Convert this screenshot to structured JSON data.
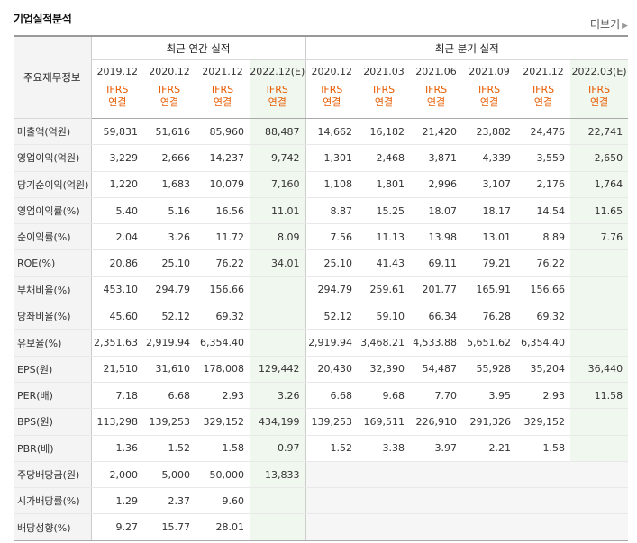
{
  "section": {
    "title": "기업실적분석",
    "more_label": "더보기"
  },
  "header": {
    "corner_label": "주요재무정보",
    "annual_label": "최근 연간 실적",
    "quarter_label": "최근 분기 실적",
    "annual_periods": [
      "2019.12",
      "2020.12",
      "2021.12",
      "2022.12(E)"
    ],
    "quarter_periods": [
      "2020.12",
      "2021.03",
      "2021.06",
      "2021.09",
      "2021.12",
      "2022.03(E)"
    ],
    "ifrs_label": "IFRS",
    "basis_label": "연결"
  },
  "rows": [
    {
      "label": "매출액(억원)",
      "values": [
        "59,831",
        "51,616",
        "85,960",
        "88,487",
        "14,662",
        "16,182",
        "21,420",
        "23,882",
        "24,476",
        "22,741"
      ]
    },
    {
      "label": "영업이익(억원)",
      "values": [
        "3,229",
        "2,666",
        "14,237",
        "9,742",
        "1,301",
        "2,468",
        "3,871",
        "4,339",
        "3,559",
        "2,650"
      ]
    },
    {
      "label": "당기순이익(억원)",
      "values": [
        "1,220",
        "1,683",
        "10,079",
        "7,160",
        "1,108",
        "1,801",
        "2,996",
        "3,107",
        "2,176",
        "1,764"
      ]
    },
    {
      "label": "영업이익률(%)",
      "values": [
        "5.40",
        "5.16",
        "16.56",
        "11.01",
        "8.87",
        "15.25",
        "18.07",
        "18.17",
        "14.54",
        "11.65"
      ]
    },
    {
      "label": "순이익률(%)",
      "values": [
        "2.04",
        "3.26",
        "11.72",
        "8.09",
        "7.56",
        "11.13",
        "13.98",
        "13.01",
        "8.89",
        "7.76"
      ]
    },
    {
      "label": "ROE(%)",
      "values": [
        "20.86",
        "25.10",
        "76.22",
        "34.01",
        "25.10",
        "41.43",
        "69.11",
        "79.21",
        "76.22",
        ""
      ]
    },
    {
      "label": "부채비율(%)",
      "values": [
        "453.10",
        "294.79",
        "156.66",
        "",
        "294.79",
        "259.61",
        "201.77",
        "165.91",
        "156.66",
        ""
      ]
    },
    {
      "label": "당좌비율(%)",
      "values": [
        "45.60",
        "52.12",
        "69.32",
        "",
        "52.12",
        "59.10",
        "66.34",
        "76.28",
        "69.32",
        ""
      ]
    },
    {
      "label": "유보율(%)",
      "values": [
        "2,351.63",
        "2,919.94",
        "6,354.40",
        "",
        "2,919.94",
        "3,468.21",
        "4,533.88",
        "5,651.62",
        "6,354.40",
        ""
      ]
    },
    {
      "label": "EPS(원)",
      "values": [
        "21,510",
        "31,610",
        "178,008",
        "129,442",
        "20,430",
        "32,390",
        "54,487",
        "55,928",
        "35,204",
        "36,440"
      ]
    },
    {
      "label": "PER(배)",
      "values": [
        "7.18",
        "6.68",
        "2.93",
        "3.26",
        "6.68",
        "9.68",
        "7.70",
        "3.95",
        "2.93",
        "11.58"
      ]
    },
    {
      "label": "BPS(원)",
      "values": [
        "113,298",
        "139,253",
        "329,152",
        "434,199",
        "139,253",
        "169,511",
        "226,910",
        "291,326",
        "329,152",
        ""
      ]
    },
    {
      "label": "PBR(배)",
      "values": [
        "1.36",
        "1.52",
        "1.58",
        "0.97",
        "1.52",
        "3.38",
        "3.97",
        "2.21",
        "1.58",
        ""
      ]
    },
    {
      "label": "주당배당금(원)",
      "values": [
        "2,000",
        "5,000",
        "50,000",
        "13,833",
        "",
        "",
        "",
        "",
        "",
        ""
      ]
    },
    {
      "label": "시가배당률(%)",
      "values": [
        "1.29",
        "2.37",
        "9.60",
        "",
        "",
        "",
        "",
        "",
        "",
        ""
      ]
    },
    {
      "label": "배당성향(%)",
      "values": [
        "9.27",
        "15.77",
        "28.01",
        "",
        "",
        "",
        "",
        "",
        "",
        ""
      ]
    }
  ]
}
